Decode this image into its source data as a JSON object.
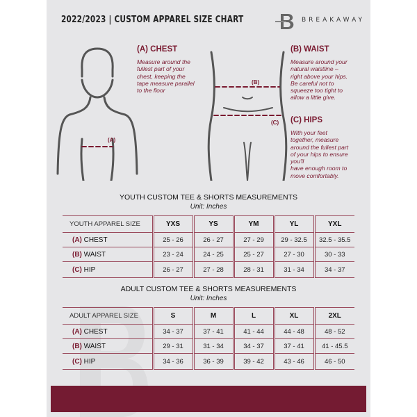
{
  "header": {
    "title": "2022/2023  |  CUSTOM APPAREL SIZE CHART",
    "brand": "BREAKAWAY",
    "logo_letter": "B"
  },
  "colors": {
    "accent": "#7a1a30",
    "background": "#e6e6e8",
    "footer": "#741b32"
  },
  "guide": {
    "chest": {
      "title": "(A) CHEST",
      "marker": "(A)",
      "text": [
        "Measure around the",
        "fullest part of your",
        "chest, keeping the",
        "tape measure parallel",
        "to the floor"
      ]
    },
    "waist": {
      "title": "(B) WAIST",
      "marker": "(B)",
      "text": [
        "Measure around your",
        "natural waistline –",
        "right above your hips.",
        "Be careful not to",
        "squeeze too tight to",
        "allow a little give."
      ]
    },
    "hips": {
      "title": "(C) HIPS",
      "marker": "(C)",
      "text": [
        "With your feet",
        "together, measure",
        "around the fullest part",
        "of your hips to ensure",
        "you'll",
        "have enough room to",
        "move comfortably."
      ]
    }
  },
  "youth": {
    "title": "YOUTH CUSTOM TEE & SHORTS MEASUREMENTS",
    "unit": "Unit: Inches",
    "header_label": "YOUTH APPAREL SIZE",
    "sizes": [
      "YXS",
      "YS",
      "YM",
      "YL",
      "YXL"
    ],
    "rows": [
      {
        "code": "(A)",
        "name": "CHEST",
        "values": [
          "25 - 26",
          "26 - 27",
          "27 - 29",
          "29 - 32.5",
          "32.5 - 35.5"
        ]
      },
      {
        "code": "(B)",
        "name": "WAIST",
        "values": [
          "23 - 24",
          "24 - 25",
          "25 - 27",
          "27 - 30",
          "30 - 33"
        ]
      },
      {
        "code": "(C)",
        "name": "HIP",
        "values": [
          "26 - 27",
          "27 - 28",
          "28 - 31",
          "31 - 34",
          "34 - 37"
        ]
      }
    ]
  },
  "adult": {
    "title": "ADULT CUSTOM TEE & SHORTS MEASUREMENTS",
    "unit": "Unit: Inches",
    "header_label": "ADULT APPAREL SIZE",
    "sizes": [
      "S",
      "M",
      "L",
      "XL",
      "2XL"
    ],
    "rows": [
      {
        "code": "(A)",
        "name": "CHEST",
        "values": [
          "34 - 37",
          "37 - 41",
          "41 - 44",
          "44 - 48",
          "48 - 52"
        ]
      },
      {
        "code": "(B)",
        "name": "WAIST",
        "values": [
          "29 - 31",
          "31 - 34",
          "34 - 37",
          "37 - 41",
          "41 - 45.5"
        ]
      },
      {
        "code": "(C)",
        "name": "HIP",
        "values": [
          "34 - 36",
          "36 - 39",
          "39 - 42",
          "43 - 46",
          "46 - 50"
        ]
      }
    ]
  }
}
